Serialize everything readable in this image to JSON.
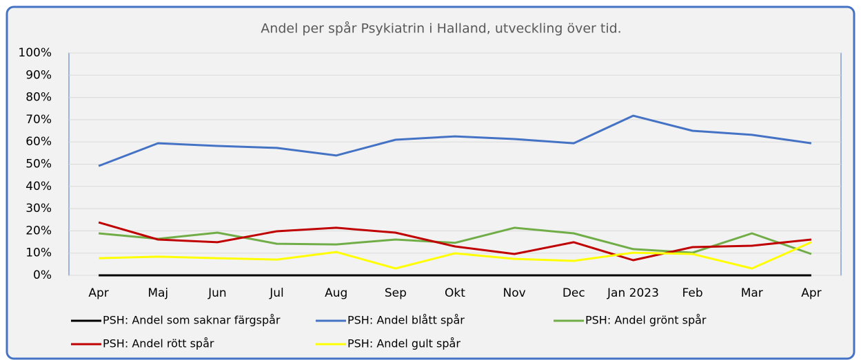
{
  "chart_data": {
    "type": "line",
    "title": "Andel per spår Psykiatrin i Halland, utveckling över tid.",
    "categories": [
      "Apr",
      "Maj",
      "Jun",
      "Jul",
      "Aug",
      "Sep",
      "Okt",
      "Nov",
      "Dec",
      "Jan 2023",
      "Feb",
      "Mar",
      "Apr"
    ],
    "series": [
      {
        "name": "PSH: Andel som saknar färgspår",
        "color": "#000000",
        "values": [
          0,
          0,
          0,
          0,
          0,
          0,
          0,
          0,
          0,
          0,
          0,
          0,
          0
        ]
      },
      {
        "name": "PSH: Andel blått spår",
        "color": "#4472c4",
        "values": [
          49.2,
          59.4,
          58.2,
          57.3,
          53.9,
          61,
          62.5,
          61.3,
          59.4,
          71.8,
          65,
          63.2,
          59.4
        ]
      },
      {
        "name": "PSH: Andel grönt spår",
        "color": "#70ad47",
        "values": [
          18.9,
          16.4,
          19.2,
          14.2,
          13.9,
          16.1,
          14.6,
          21.4,
          18.9,
          11.8,
          10.2,
          18.9,
          9.6
        ]
      },
      {
        "name": "PSH: Andel rött spår",
        "color": "#c00000",
        "values": [
          23.8,
          16.1,
          14.9,
          19.8,
          21.4,
          19.2,
          13,
          9.6,
          14.9,
          6.8,
          12.7,
          13.3,
          16.1
        ]
      },
      {
        "name": "PSH: Andel gult spår",
        "color": "#ffff00",
        "values": [
          7.7,
          8.4,
          7.7,
          7.1,
          10.5,
          3.1,
          9.9,
          7.4,
          6.5,
          10.2,
          9.6,
          3.1,
          14.9
        ]
      }
    ],
    "ylim": [
      0,
      100
    ],
    "yticks": [
      {
        "value": 0,
        "label": "0%"
      },
      {
        "value": 10,
        "label": "10%"
      },
      {
        "value": 20,
        "label": "20%"
      },
      {
        "value": 30,
        "label": "30%"
      },
      {
        "value": 40,
        "label": "40%"
      },
      {
        "value": 50,
        "label": "50%"
      },
      {
        "value": 60,
        "label": "60%"
      },
      {
        "value": 70,
        "label": "70%"
      },
      {
        "value": 80,
        "label": "80%"
      },
      {
        "value": 90,
        "label": "90%"
      },
      {
        "value": 100,
        "label": "100%"
      }
    ],
    "grid": true,
    "legend": "bottom"
  }
}
